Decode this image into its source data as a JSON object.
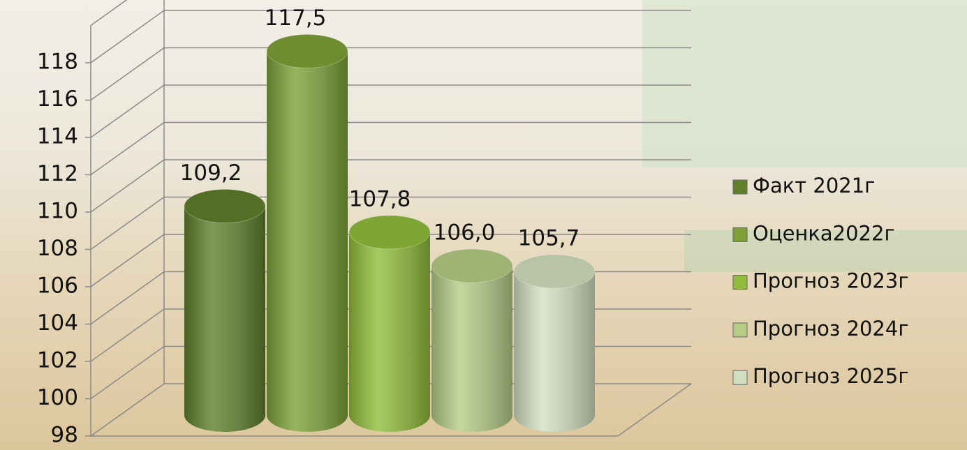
{
  "chart_data": {
    "type": "bar3d",
    "series": [
      {
        "name": "Факт 2021г",
        "color": "#5f7f2b",
        "values": [
          109.2
        ],
        "value_labels": [
          "109,2"
        ]
      },
      {
        "name": "Оценка2022г",
        "color": "#7da137",
        "values": [
          117.5
        ],
        "value_labels": [
          "117,5"
        ]
      },
      {
        "name": "Прогноз 2023г",
        "color": "#8fbd3a",
        "values": [
          107.8
        ],
        "value_labels": [
          "107,8"
        ]
      },
      {
        "name": "Прогноз 2024г",
        "color": "#b5cc86",
        "values": [
          106.0
        ],
        "value_labels": [
          "106,0"
        ]
      },
      {
        "name": "Прогноз 2025г",
        "color": "#d3e0bf",
        "values": [
          105.7
        ],
        "value_labels": [
          "105,7"
        ]
      }
    ],
    "ylim": [
      98,
      120
    ],
    "yticks": [
      98,
      100,
      102,
      104,
      106,
      108,
      110,
      112,
      114,
      116,
      118
    ],
    "grid": true,
    "legend": "right"
  }
}
